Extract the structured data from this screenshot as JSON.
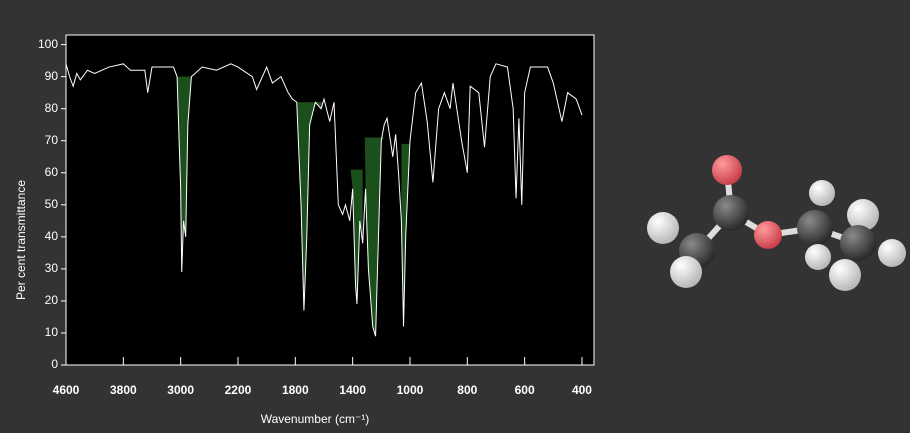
{
  "chart_data": {
    "type": "line",
    "xlabel": "Wavenumber (cm⁻¹)",
    "ylabel": "Per cent transmittance",
    "x": [
      4600,
      4550,
      4500,
      4450,
      4400,
      4300,
      4200,
      4000,
      3800,
      3700,
      3500,
      3460,
      3400,
      3100,
      3050,
      3000,
      2985,
      2960,
      2930,
      2900,
      2850,
      2800,
      2700,
      2500,
      2300,
      2200,
      2100,
      2070,
      2000,
      1960,
      1900,
      1850,
      1820,
      1790,
      1760,
      1740,
      1720,
      1700,
      1660,
      1620,
      1600,
      1560,
      1530,
      1500,
      1470,
      1450,
      1420,
      1400,
      1380,
      1370,
      1350,
      1330,
      1310,
      1290,
      1260,
      1240,
      1220,
      1200,
      1180,
      1160,
      1120,
      1100,
      1080,
      1060,
      1045,
      1030,
      1000,
      980,
      960,
      940,
      920,
      900,
      880,
      860,
      850,
      820,
      800,
      790,
      760,
      740,
      720,
      700,
      660,
      640,
      630,
      620,
      610,
      600,
      580,
      520,
      500,
      480,
      470,
      450,
      420,
      400
    ],
    "series": [
      {
        "color": "#ffffff",
        "values": [
          94,
          90,
          87,
          91,
          89,
          92,
          91,
          93,
          94,
          92,
          92,
          85,
          93,
          93,
          90,
          55,
          29,
          45,
          40,
          75,
          90,
          91,
          93,
          92,
          94,
          93,
          90,
          86,
          93,
          88,
          90,
          85,
          83,
          82,
          50,
          17,
          40,
          75,
          82,
          80,
          83,
          76,
          82,
          50,
          47,
          50,
          45,
          55,
          25,
          19,
          45,
          38,
          55,
          30,
          12,
          9,
          40,
          70,
          75,
          77,
          65,
          72,
          60,
          45,
          12,
          40,
          70,
          85,
          88,
          76,
          57,
          80,
          85,
          80,
          88,
          70,
          60,
          87,
          85,
          68,
          90,
          94,
          93,
          80,
          52,
          77,
          50,
          85,
          93,
          93,
          88,
          80,
          76,
          85,
          83,
          78
        ]
      }
    ],
    "xlim": [
      4600,
      360
    ],
    "ylim": [
      0,
      103
    ],
    "xticks": [
      4600,
      3800,
      3000,
      2200,
      1800,
      1400,
      1000,
      800,
      600,
      400
    ],
    "yticks": [
      0,
      10,
      20,
      30,
      40,
      50,
      60,
      70,
      80,
      90,
      100
    ],
    "highlight_color": "#1b4f1b",
    "highlights": [
      {
        "xlim": [
          3050,
          2780
        ],
        "top": 90
      },
      {
        "xlim": [
          1790,
          1610
        ],
        "top": 82
      },
      {
        "xlim": [
          1415,
          1330
        ],
        "top": 61
      },
      {
        "xlim": [
          1315,
          1160
        ],
        "top": 71
      },
      {
        "xlim": [
          1060,
          970
        ],
        "top": 69
      }
    ]
  }
}
